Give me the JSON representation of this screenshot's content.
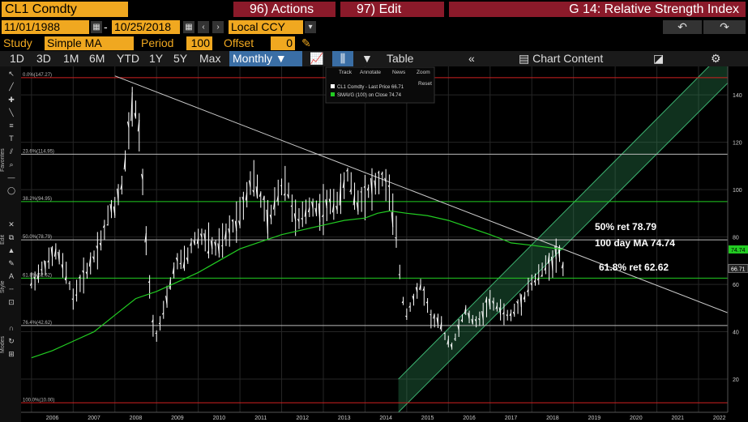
{
  "header": {
    "ticker": "CL1 Comdty",
    "actions_label": "96) Actions",
    "edit_label": "97) Edit",
    "graph_title": "G 14: Relative Strength Index"
  },
  "dates": {
    "start": "11/01/1988",
    "sep": "-",
    "end": "10/25/2018",
    "currency": "Local CCY"
  },
  "study": {
    "label": "Study",
    "value": "Simple MA",
    "period_label": "Period",
    "period_value": "100",
    "offset_label": "Offset",
    "offset_value": "0"
  },
  "toolbar": {
    "ranges": [
      "1D",
      "3D",
      "1M",
      "6M",
      "YTD",
      "1Y",
      "5Y",
      "Max"
    ],
    "frequency": "Monthly",
    "table_label": "Table",
    "chart_content_label": "Chart Content"
  },
  "sidebar": {
    "tabs": [
      "Favorites",
      "Edit",
      "Style",
      "Modes"
    ]
  },
  "legend": {
    "track": "Track",
    "annotate": "Annotate",
    "news": "News",
    "zoom": "Zoom",
    "reset": "Reset",
    "series1": "CL1 Comdty - Last Price 66.71",
    "series2": "SMAVG (100)  on Close   74.74"
  },
  "annotations": [
    {
      "text": "50% ret 78.79"
    },
    {
      "text": "100 day MA 74.74"
    },
    {
      "text": "61.8% ret 62.62"
    }
  ],
  "colors": {
    "accent": "#f0a820",
    "red_button": "#8b1a2a",
    "price": "#ffffff",
    "ma": "#22cc22",
    "channel": "#2e8b57",
    "grid": "#262626"
  },
  "chart_data": {
    "type": "line",
    "x_ticks": [
      "2006",
      "2007",
      "2008",
      "2009",
      "2010",
      "2011",
      "2012",
      "2013",
      "2014",
      "2015",
      "2016",
      "2017",
      "2018",
      "2019",
      "2020",
      "2021",
      "2022"
    ],
    "y_ticks": [
      20,
      40,
      60,
      80,
      100,
      120,
      140
    ],
    "ylim": [
      10,
      150
    ],
    "fib_levels": [
      {
        "label": "0.0%(147.27)",
        "value": 147.27,
        "color": "#d02020"
      },
      {
        "label": "23.6%(114.95)",
        "value": 114.95,
        "color": "#bbbbbb"
      },
      {
        "label": "38.2%(94.95)",
        "value": 94.95,
        "color": "#22cc22"
      },
      {
        "label": "50.0%(78.79)",
        "value": 78.79,
        "color": "#bbbbbb"
      },
      {
        "label": "61.8%(62.62)",
        "value": 62.62,
        "color": "#22cc22"
      },
      {
        "label": "76.4%(42.62)",
        "value": 42.62,
        "color": "#bbbbbb"
      },
      {
        "label": "100.0%(10.00)",
        "value": 10.0,
        "color": "#d02020"
      }
    ],
    "last_price_label": "66.71",
    "ma_label": "74.74",
    "price_series": {
      "name": "CL1 Comdty - Last Price",
      "points": [
        [
          2006.0,
          61
        ],
        [
          2006.25,
          66
        ],
        [
          2006.6,
          74
        ],
        [
          2006.9,
          61
        ],
        [
          2007.0,
          54
        ],
        [
          2007.2,
          62
        ],
        [
          2007.45,
          70
        ],
        [
          2007.7,
          80
        ],
        [
          2007.9,
          92
        ],
        [
          2008.0,
          93
        ],
        [
          2008.2,
          105
        ],
        [
          2008.45,
          140
        ],
        [
          2008.6,
          122
        ],
        [
          2008.75,
          78
        ],
        [
          2008.9,
          44
        ],
        [
          2009.0,
          39
        ],
        [
          2009.2,
          50
        ],
        [
          2009.45,
          69
        ],
        [
          2009.7,
          70
        ],
        [
          2009.9,
          79
        ],
        [
          2010.1,
          80
        ],
        [
          2010.4,
          75
        ],
        [
          2010.6,
          78
        ],
        [
          2010.8,
          84
        ],
        [
          2011.0,
          90
        ],
        [
          2011.3,
          106
        ],
        [
          2011.5,
          96
        ],
        [
          2011.7,
          85
        ],
        [
          2011.9,
          99
        ],
        [
          2012.1,
          104
        ],
        [
          2012.35,
          86
        ],
        [
          2012.5,
          88
        ],
        [
          2012.7,
          94
        ],
        [
          2012.9,
          91
        ],
        [
          2013.1,
          93
        ],
        [
          2013.4,
          96
        ],
        [
          2013.6,
          107
        ],
        [
          2013.8,
          94
        ],
        [
          2013.95,
          98
        ],
        [
          2014.2,
          101
        ],
        [
          2014.45,
          105
        ],
        [
          2014.6,
          97
        ],
        [
          2014.75,
          80
        ],
        [
          2014.9,
          54
        ],
        [
          2015.0,
          48
        ],
        [
          2015.35,
          60
        ],
        [
          2015.6,
          45
        ],
        [
          2015.8,
          44
        ],
        [
          2015.95,
          37
        ],
        [
          2016.1,
          34
        ],
        [
          2016.4,
          49
        ],
        [
          2016.6,
          44
        ],
        [
          2016.8,
          46
        ],
        [
          2016.95,
          53
        ],
        [
          2017.2,
          50
        ],
        [
          2017.45,
          46
        ],
        [
          2017.6,
          49
        ],
        [
          2017.8,
          54
        ],
        [
          2017.95,
          60
        ],
        [
          2018.1,
          62
        ],
        [
          2018.35,
          68
        ],
        [
          2018.5,
          70
        ],
        [
          2018.65,
          74
        ],
        [
          2018.75,
          66.71
        ]
      ]
    },
    "ma_series": {
      "name": "SMAVG (100) on Close",
      "points": [
        [
          2006.0,
          29
        ],
        [
          2006.5,
          32
        ],
        [
          2007.0,
          36
        ],
        [
          2007.5,
          40
        ],
        [
          2008.0,
          47
        ],
        [
          2008.5,
          54
        ],
        [
          2009.0,
          57
        ],
        [
          2009.5,
          61
        ],
        [
          2010.0,
          65
        ],
        [
          2010.5,
          70
        ],
        [
          2011.0,
          75
        ],
        [
          2011.5,
          78
        ],
        [
          2012.0,
          81
        ],
        [
          2012.5,
          83
        ],
        [
          2013.0,
          85
        ],
        [
          2013.5,
          87
        ],
        [
          2014.0,
          88
        ],
        [
          2014.3,
          90
        ],
        [
          2014.6,
          91
        ],
        [
          2015.0,
          90
        ],
        [
          2015.5,
          89
        ],
        [
          2016.0,
          87
        ],
        [
          2016.5,
          84
        ],
        [
          2017.0,
          81
        ],
        [
          2017.3,
          79
        ],
        [
          2017.5,
          77.5
        ],
        [
          2018.0,
          76.5
        ],
        [
          2018.75,
          74.74
        ]
      ]
    },
    "trendline": {
      "from": [
        2008.0,
        148
      ],
      "to": [
        2022.7,
        48
      ]
    },
    "channel": {
      "lower": [
        [
          2014.8,
          6
        ],
        [
          2022.7,
          145
        ]
      ],
      "upper": [
        [
          2014.8,
          20
        ],
        [
          2022.7,
          160
        ]
      ]
    }
  }
}
